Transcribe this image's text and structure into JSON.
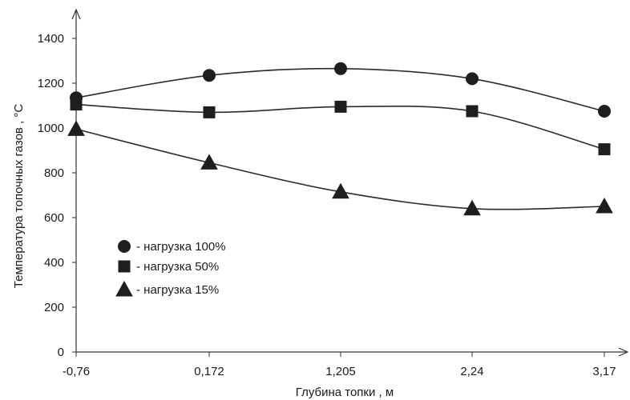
{
  "chart_data": {
    "type": "line",
    "title": "",
    "xlabel": "Глубина топки , м",
    "ylabel": "Температура топочных газов , °С",
    "categories": [
      "-0,76",
      "0,172",
      "1,205",
      "2,24",
      "3,17"
    ],
    "ylim": [
      0,
      1400
    ],
    "yticks": [
      0,
      200,
      400,
      600,
      800,
      1000,
      1200,
      1400
    ],
    "grid": false,
    "legend_position": "lower-left",
    "series": [
      {
        "name": "- нагрузка 100%",
        "marker": "circle",
        "values": [
          1135,
          1235,
          1265,
          1220,
          1075
        ]
      },
      {
        "name": "- нагрузка 50%",
        "marker": "square",
        "values": [
          1105,
          1070,
          1095,
          1075,
          905
        ]
      },
      {
        "name": "- нагрузка 15%",
        "marker": "triangle",
        "values": [
          995,
          845,
          715,
          640,
          650
        ]
      }
    ]
  }
}
